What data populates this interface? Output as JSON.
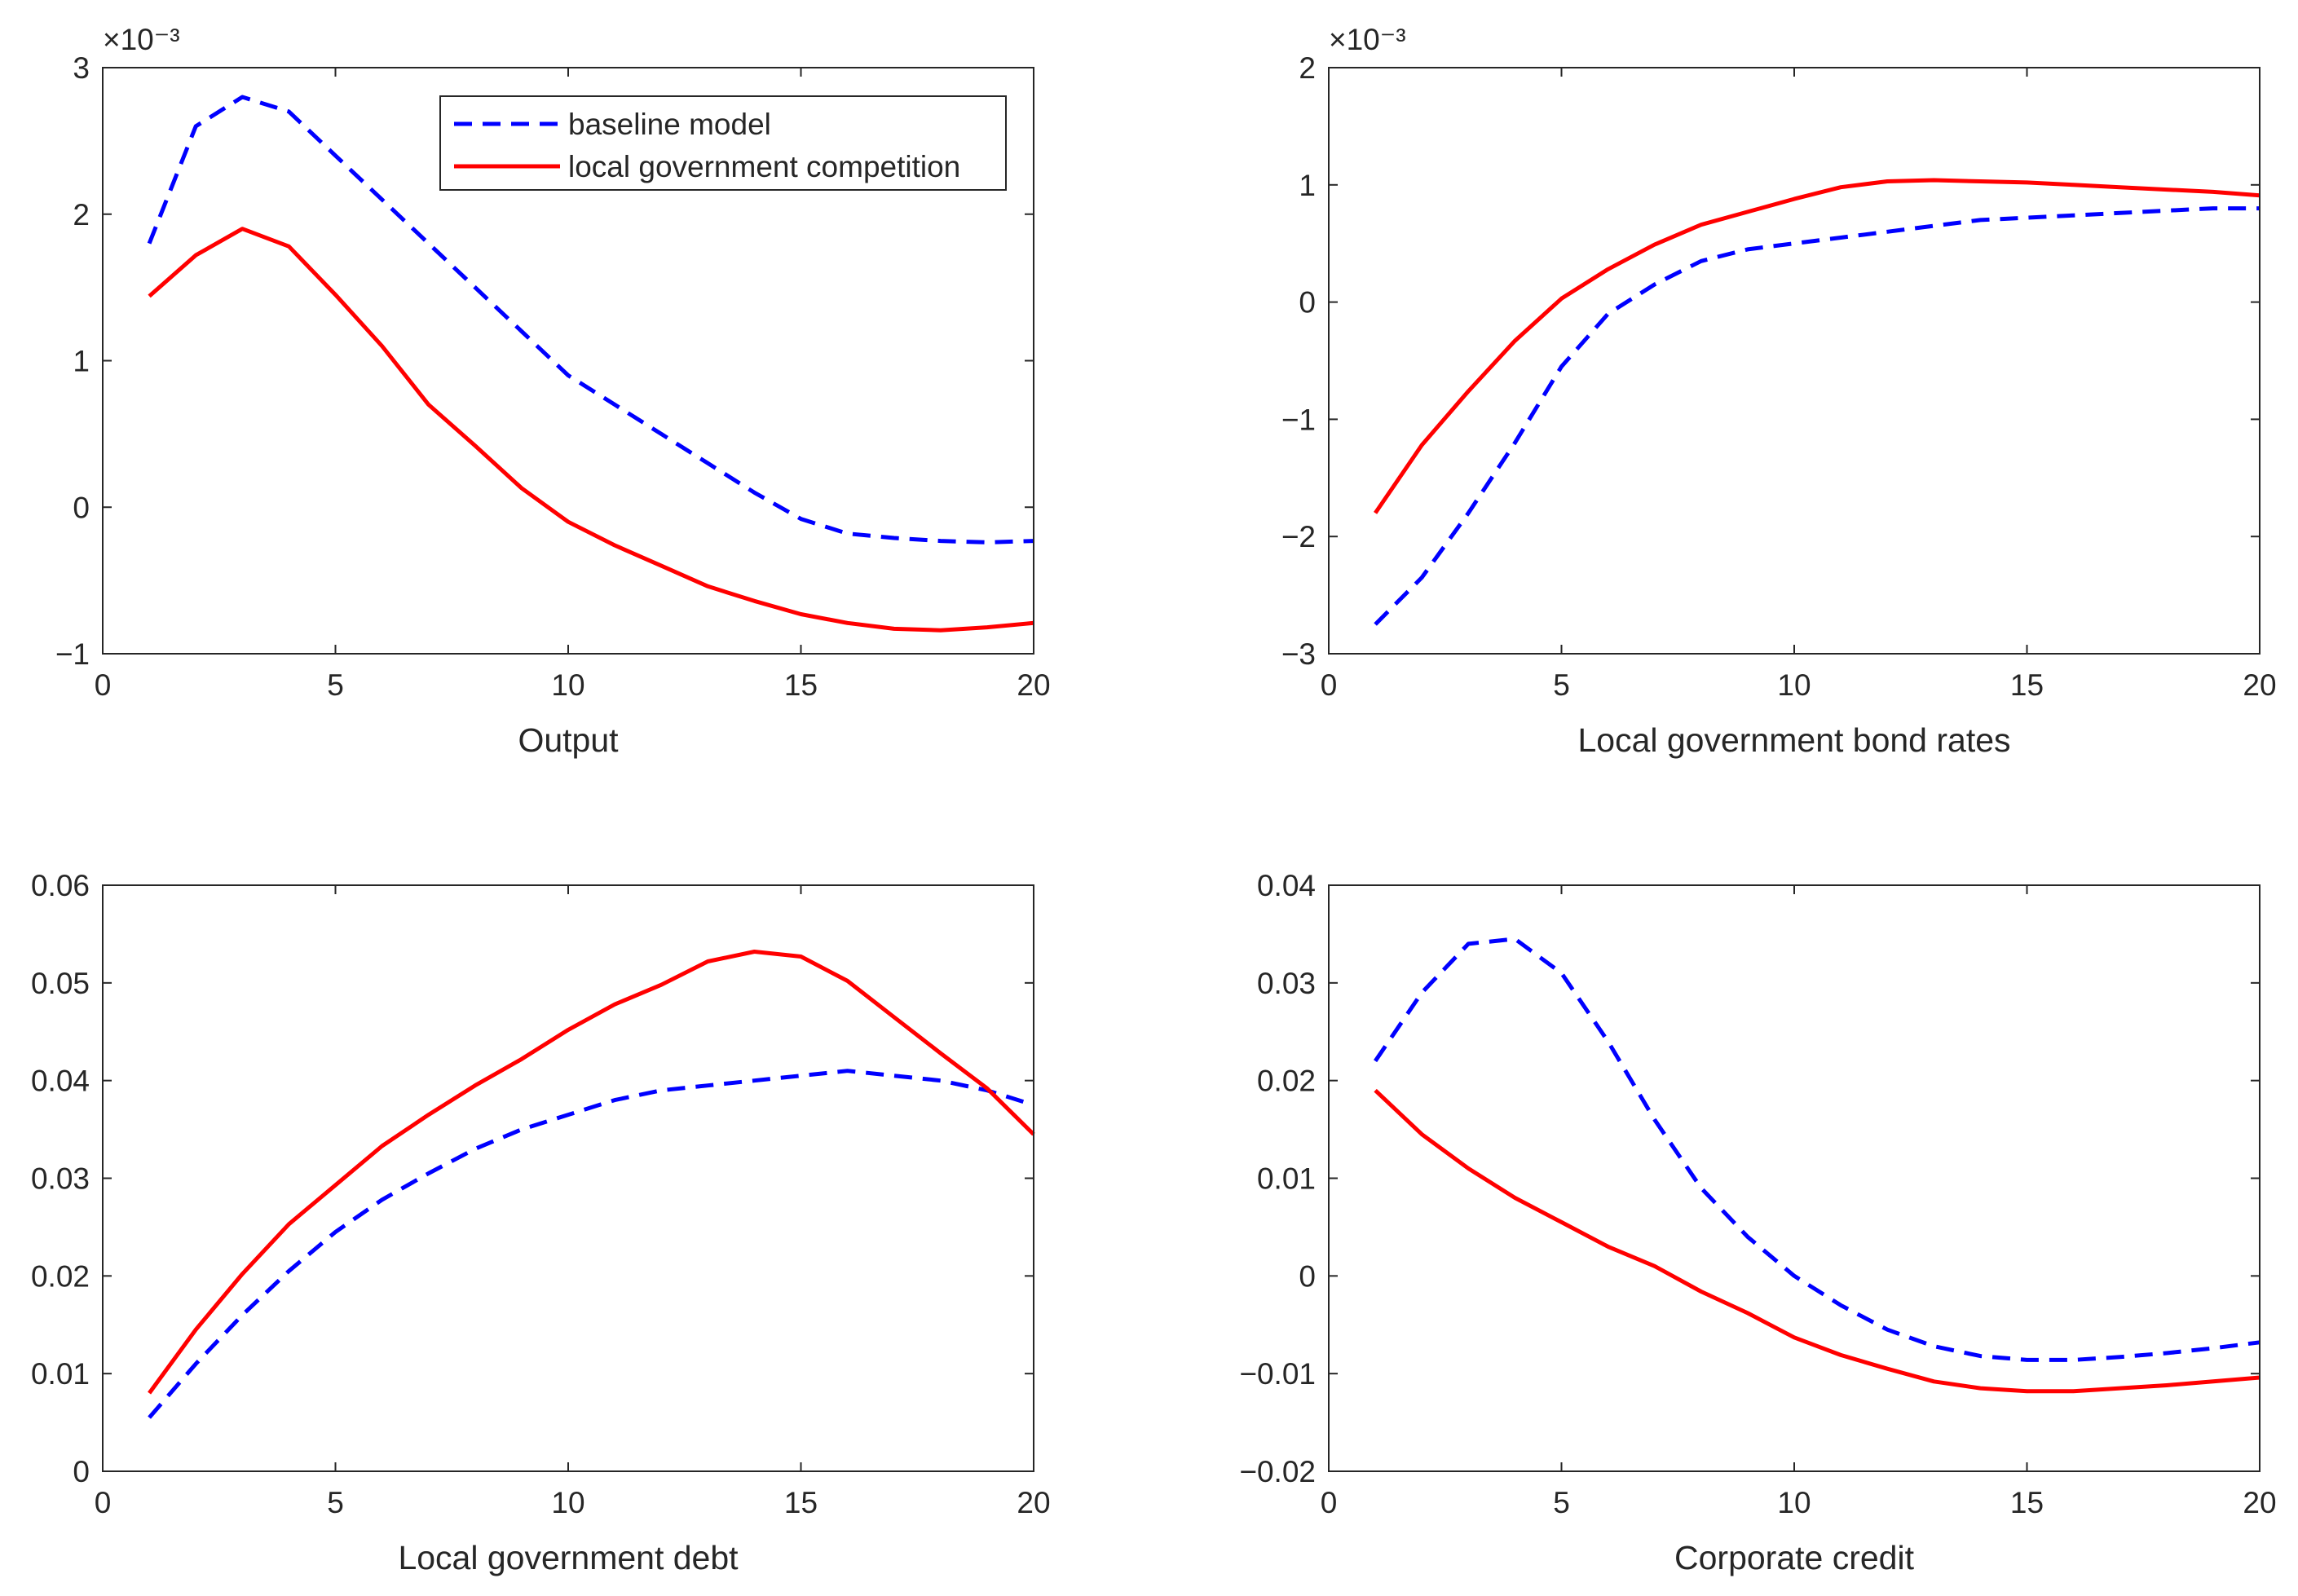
{
  "chart_data": [
    {
      "type": "line",
      "xlabel": "Output",
      "ylabel": "",
      "exponent_label": "×10⁻³",
      "xlim": [
        0,
        20
      ],
      "ylim": [
        -1,
        3
      ],
      "xticks": [
        0,
        5,
        10,
        15,
        20
      ],
      "yticks": [
        -1,
        0,
        1,
        2,
        3
      ],
      "ytick_labels": [
        "−1",
        "0",
        "1",
        "2",
        "3"
      ],
      "legend": {
        "location": "top-right",
        "entries": [
          "baseline model",
          "local government competition"
        ]
      },
      "x": [
        1,
        2,
        3,
        4,
        5,
        6,
        7,
        8,
        9,
        10,
        11,
        12,
        13,
        14,
        15,
        16,
        17,
        18,
        19,
        20
      ],
      "series": [
        {
          "name": "baseline model",
          "style": "dashed",
          "color": "#0000ff",
          "values": [
            1.8,
            2.6,
            2.8,
            2.7,
            2.4,
            2.1,
            1.8,
            1.5,
            1.2,
            0.9,
            0.7,
            0.5,
            0.3,
            0.1,
            -0.08,
            -0.18,
            -0.21,
            -0.23,
            -0.24,
            -0.23
          ]
        },
        {
          "name": "local government competition",
          "style": "solid",
          "color": "#ff0000",
          "values": [
            1.44,
            1.72,
            1.9,
            1.78,
            1.45,
            1.1,
            0.7,
            0.42,
            0.13,
            -0.1,
            -0.26,
            -0.4,
            -0.54,
            -0.64,
            -0.73,
            -0.79,
            -0.83,
            -0.84,
            -0.82,
            -0.79
          ]
        }
      ]
    },
    {
      "type": "line",
      "xlabel": "Local government bond rates",
      "ylabel": "",
      "exponent_label": "×10⁻³",
      "xlim": [
        0,
        20
      ],
      "ylim": [
        -3,
        2
      ],
      "xticks": [
        0,
        5,
        10,
        15,
        20
      ],
      "yticks": [
        -3,
        -2,
        -1,
        0,
        1,
        2
      ],
      "ytick_labels": [
        "−3",
        "−2",
        "−1",
        "0",
        "1",
        "2"
      ],
      "x": [
        1,
        2,
        3,
        4,
        5,
        6,
        7,
        8,
        9,
        10,
        11,
        12,
        13,
        14,
        15,
        16,
        17,
        18,
        19,
        20
      ],
      "series": [
        {
          "name": "baseline model",
          "style": "dashed",
          "color": "#0000ff",
          "values": [
            -2.75,
            -2.35,
            -1.8,
            -1.2,
            -0.55,
            -0.1,
            0.15,
            0.35,
            0.45,
            0.5,
            0.55,
            0.6,
            0.65,
            0.7,
            0.72,
            0.74,
            0.76,
            0.78,
            0.8,
            0.8
          ]
        },
        {
          "name": "local government competition",
          "style": "solid",
          "color": "#ff0000",
          "values": [
            -1.8,
            -1.22,
            -0.76,
            -0.33,
            0.03,
            0.28,
            0.49,
            0.66,
            0.77,
            0.88,
            0.98,
            1.03,
            1.04,
            1.03,
            1.02,
            1.0,
            0.98,
            0.96,
            0.94,
            0.91
          ]
        }
      ]
    },
    {
      "type": "line",
      "xlabel": "Local government debt",
      "ylabel": "",
      "xlim": [
        0,
        20
      ],
      "ylim": [
        0,
        0.06
      ],
      "xticks": [
        0,
        5,
        10,
        15,
        20
      ],
      "yticks": [
        0,
        0.01,
        0.02,
        0.03,
        0.04,
        0.05,
        0.06
      ],
      "ytick_labels": [
        "0",
        "0.01",
        "0.02",
        "0.03",
        "0.04",
        "0.05",
        "0.06"
      ],
      "x": [
        1,
        2,
        3,
        4,
        5,
        6,
        7,
        8,
        9,
        10,
        11,
        12,
        13,
        14,
        15,
        16,
        17,
        18,
        19,
        20
      ],
      "series": [
        {
          "name": "baseline model",
          "style": "dashed",
          "color": "#0000ff",
          "values": [
            0.0055,
            0.011,
            0.016,
            0.0205,
            0.0245,
            0.0278,
            0.0305,
            0.033,
            0.035,
            0.0365,
            0.038,
            0.039,
            0.0395,
            0.04,
            0.0405,
            0.041,
            0.0405,
            0.04,
            0.039,
            0.0375
          ]
        },
        {
          "name": "local government competition",
          "style": "solid",
          "color": "#ff0000",
          "values": [
            0.008,
            0.0145,
            0.0202,
            0.0253,
            0.0293,
            0.0333,
            0.0365,
            0.0395,
            0.0422,
            0.0452,
            0.0478,
            0.0498,
            0.0522,
            0.0532,
            0.0527,
            0.0502,
            0.0465,
            0.0428,
            0.0392,
            0.0345
          ]
        }
      ]
    },
    {
      "type": "line",
      "xlabel": "Corporate credit",
      "ylabel": "",
      "xlim": [
        0,
        20
      ],
      "ylim": [
        -0.02,
        0.04
      ],
      "xticks": [
        0,
        5,
        10,
        15,
        20
      ],
      "yticks": [
        -0.02,
        -0.01,
        0,
        0.01,
        0.02,
        0.03,
        0.04
      ],
      "ytick_labels": [
        "−0.02",
        "−0.01",
        "0",
        "0.01",
        "0.02",
        "0.03",
        "0.04"
      ],
      "x": [
        1,
        2,
        3,
        4,
        5,
        6,
        7,
        8,
        9,
        10,
        11,
        12,
        13,
        14,
        15,
        16,
        17,
        18,
        19,
        20
      ],
      "series": [
        {
          "name": "baseline model",
          "style": "dashed",
          "color": "#0000ff",
          "x": [
            1,
            2,
            3,
            4,
            5,
            6,
            7,
            8,
            9,
            10,
            11,
            12,
            13,
            14,
            15,
            16,
            17,
            18,
            19,
            20
          ],
          "values": [
            0.022,
            0.029,
            0.034,
            0.0345,
            0.031,
            0.024,
            0.016,
            0.009,
            0.004,
            0.0,
            -0.003,
            -0.0055,
            -0.0072,
            -0.0082,
            -0.0086,
            -0.0086,
            -0.0083,
            -0.0079,
            -0.0074,
            -0.0068
          ]
        },
        {
          "name": "local government competition",
          "style": "solid",
          "color": "#ff0000",
          "values": [
            0.019,
            0.0145,
            0.011,
            0.008,
            0.0055,
            0.003,
            0.001,
            -0.0016,
            -0.0038,
            -0.0063,
            -0.0081,
            -0.0095,
            -0.0108,
            -0.0115,
            -0.0118,
            -0.0118,
            -0.0115,
            -0.0112,
            -0.0108,
            -0.0104
          ]
        }
      ]
    }
  ]
}
